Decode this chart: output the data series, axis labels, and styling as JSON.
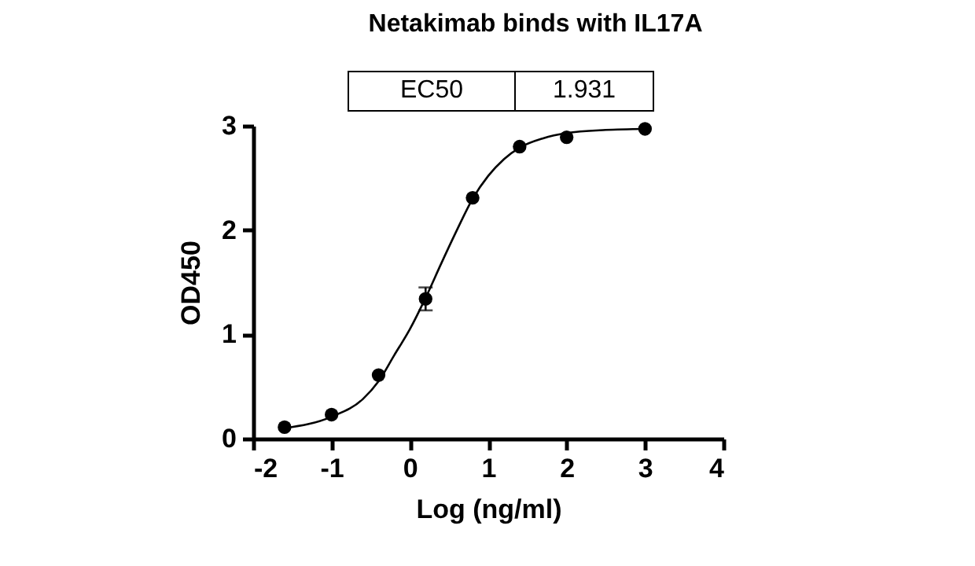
{
  "chart_data": {
    "type": "scatter",
    "title": "Netakimab binds with IL17A",
    "xlabel": "Log (ng/ml)",
    "ylabel": "OD450",
    "annotations": [
      "EC50",
      "1.931"
    ],
    "xlim": [
      -2,
      4
    ],
    "xticks": [
      -2,
      -1,
      0,
      1,
      2,
      3,
      4
    ],
    "ylim": [
      0,
      3
    ],
    "yticks": [
      0,
      1,
      2,
      3
    ],
    "grid": false,
    "series": [
      {
        "marker": "circle",
        "color": "#000000",
        "x": [
          -1.6,
          -1.0,
          -0.4,
          0.2,
          0.8,
          1.4,
          2.0,
          3.0
        ],
        "values": [
          0.11,
          0.23,
          0.61,
          1.34,
          2.31,
          2.8,
          2.89,
          2.97
        ],
        "errors": [
          null,
          null,
          null,
          0.11,
          null,
          null,
          null,
          null
        ]
      },
      {
        "type": "line",
        "color": "#000000",
        "line_style": "solid",
        "x": [
          -1.6,
          -1.0,
          -0.6,
          -0.4,
          -0.2,
          0,
          0.2,
          0.4,
          0.6,
          0.8,
          1.0,
          1.2,
          1.4,
          1.7,
          2.0,
          2.5,
          3.0
        ],
        "values": [
          0.1,
          0.21,
          0.38,
          0.55,
          0.8,
          1.05,
          1.35,
          1.68,
          2.0,
          2.3,
          2.52,
          2.68,
          2.79,
          2.88,
          2.93,
          2.96,
          2.97
        ]
      }
    ]
  }
}
